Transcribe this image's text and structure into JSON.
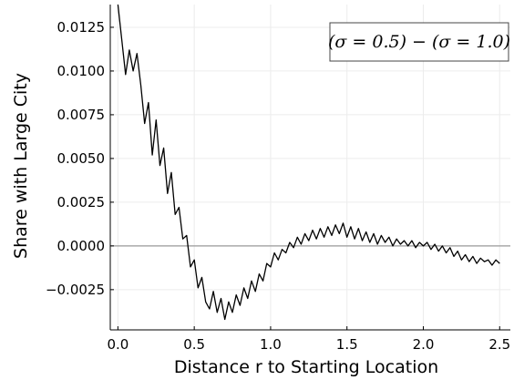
{
  "chart_data": {
    "type": "line",
    "title": "",
    "xlabel": "Distance r to Starting Location",
    "ylabel": "Share with Large City",
    "xlim": [
      -0.05,
      2.57
    ],
    "ylim": [
      -0.0048,
      0.0138
    ],
    "xticks": [
      0.0,
      0.5,
      1.0,
      1.5,
      2.0,
      2.5
    ],
    "xtick_labels": [
      "0.0",
      "0.5",
      "1.0",
      "1.5",
      "2.0",
      "2.5"
    ],
    "yticks": [
      -0.0025,
      0.0,
      0.0025,
      0.005,
      0.0075,
      0.01,
      0.0125
    ],
    "ytick_labels": [
      "−0.0025",
      "0.0000",
      "0.0025",
      "0.0050",
      "0.0075",
      "0.0100",
      "0.0125"
    ],
    "grid": true,
    "legend_position": "top-right",
    "reference_line_y": 0.0,
    "series": [
      {
        "name": "(σ = 0.5) − (σ = 1.0)",
        "color": "#000000",
        "x": [
          0.0,
          0.025,
          0.05,
          0.075,
          0.1,
          0.125,
          0.15,
          0.175,
          0.2,
          0.225,
          0.25,
          0.275,
          0.3,
          0.325,
          0.35,
          0.375,
          0.4,
          0.425,
          0.45,
          0.475,
          0.5,
          0.525,
          0.55,
          0.575,
          0.6,
          0.625,
          0.65,
          0.675,
          0.7,
          0.725,
          0.75,
          0.775,
          0.8,
          0.825,
          0.85,
          0.875,
          0.9,
          0.925,
          0.95,
          0.975,
          1.0,
          1.025,
          1.05,
          1.075,
          1.1,
          1.125,
          1.15,
          1.175,
          1.2,
          1.225,
          1.25,
          1.275,
          1.3,
          1.325,
          1.35,
          1.375,
          1.4,
          1.425,
          1.45,
          1.475,
          1.5,
          1.525,
          1.55,
          1.575,
          1.6,
          1.625,
          1.65,
          1.675,
          1.7,
          1.725,
          1.75,
          1.775,
          1.8,
          1.825,
          1.85,
          1.875,
          1.9,
          1.925,
          1.95,
          1.975,
          2.0,
          2.025,
          2.05,
          2.075,
          2.1,
          2.125,
          2.15,
          2.175,
          2.2,
          2.225,
          2.25,
          2.275,
          2.3,
          2.325,
          2.35,
          2.375,
          2.4,
          2.425,
          2.45,
          2.475,
          2.5
        ],
        "y": [
          0.0138,
          0.0118,
          0.0098,
          0.0112,
          0.01,
          0.011,
          0.0092,
          0.007,
          0.0082,
          0.0052,
          0.0072,
          0.0046,
          0.0056,
          0.003,
          0.0042,
          0.0018,
          0.0022,
          0.0004,
          0.0006,
          -0.0012,
          -0.0008,
          -0.0024,
          -0.0018,
          -0.0032,
          -0.0036,
          -0.0026,
          -0.0038,
          -0.003,
          -0.0042,
          -0.0032,
          -0.0038,
          -0.0028,
          -0.0034,
          -0.0024,
          -0.003,
          -0.002,
          -0.0026,
          -0.0016,
          -0.002,
          -0.001,
          -0.0012,
          -0.0004,
          -0.0008,
          -0.0002,
          -0.0004,
          0.0002,
          -0.0001,
          0.0005,
          0.0001,
          0.0007,
          0.0003,
          0.0009,
          0.0004,
          0.001,
          0.0005,
          0.0011,
          0.0006,
          0.0012,
          0.0007,
          0.0013,
          0.0005,
          0.0011,
          0.0004,
          0.001,
          0.0003,
          0.0008,
          0.0002,
          0.0007,
          0.0001,
          0.0006,
          0.0002,
          0.0005,
          0.0,
          0.0004,
          0.0001,
          0.0003,
          0.0,
          0.0003,
          -0.0001,
          0.0002,
          0.0,
          0.0002,
          -0.0002,
          0.0001,
          -0.0003,
          0.0,
          -0.0004,
          -0.0001,
          -0.0006,
          -0.0003,
          -0.0008,
          -0.0005,
          -0.0009,
          -0.0006,
          -0.001,
          -0.0007,
          -0.0009,
          -0.0008,
          -0.0011,
          -0.0008,
          -0.001
        ]
      }
    ]
  },
  "legend": {
    "label": "(σ = 0.5) − (σ = 1.0)"
  }
}
